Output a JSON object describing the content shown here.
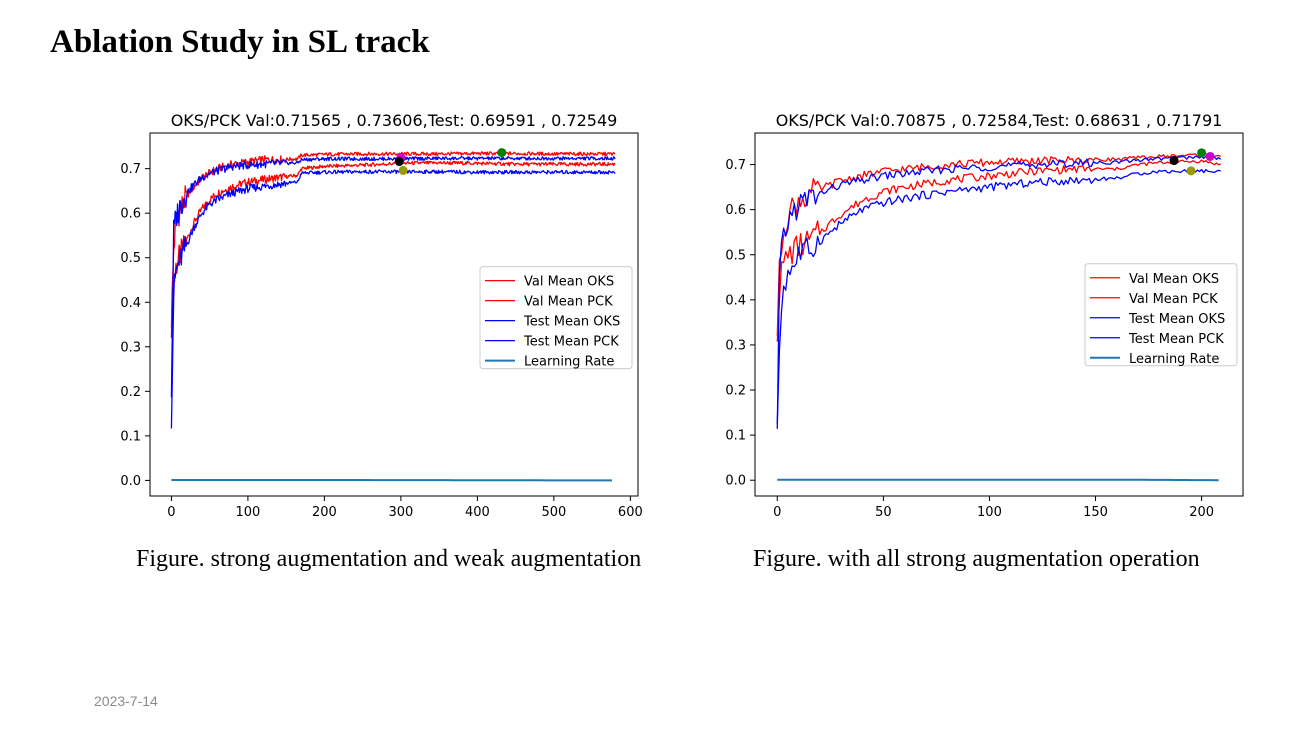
{
  "slide": {
    "title": "Ablation Study in SL track",
    "date": "2023-7-14"
  },
  "captions": {
    "left": "Figure. strong augmentation and weak augmentation",
    "right": "Figure. with all strong augmentation operation"
  },
  "chart_data": [
    {
      "type": "line",
      "title": "OKS/PCK Val:0.71565 , 0.73606,Test: 0.69591 , 0.72549",
      "xlim": [
        -28,
        610
      ],
      "ylim": [
        -0.035,
        0.78
      ],
      "xticks": [
        0,
        100,
        200,
        300,
        400,
        500,
        600
      ],
      "yticks": [
        0.0,
        0.1,
        0.2,
        0.3,
        0.4,
        0.5,
        0.6,
        0.7
      ],
      "grid": false,
      "legend_position": "center-right",
      "series": [
        {
          "name": "Val Mean OKS",
          "color": "#ff0000",
          "x": [
            0,
            3,
            6,
            10,
            15,
            20,
            30,
            40,
            50,
            60,
            80,
            100,
            120,
            140,
            165,
            170,
            200,
            250,
            300,
            350,
            400,
            450,
            500,
            580
          ],
          "y": [
            0.35,
            0.44,
            0.48,
            0.5,
            0.52,
            0.54,
            0.58,
            0.61,
            0.63,
            0.645,
            0.66,
            0.67,
            0.675,
            0.68,
            0.685,
            0.7,
            0.705,
            0.708,
            0.712,
            0.713,
            0.712,
            0.71,
            0.71,
            0.71
          ]
        },
        {
          "name": "Val Mean PCK",
          "color": "#ff0000",
          "x": [
            0,
            3,
            6,
            10,
            15,
            20,
            30,
            40,
            50,
            60,
            80,
            100,
            120,
            140,
            165,
            170,
            200,
            250,
            300,
            350,
            400,
            450,
            500,
            580
          ],
          "y": [
            0.36,
            0.52,
            0.58,
            0.6,
            0.62,
            0.64,
            0.66,
            0.68,
            0.69,
            0.7,
            0.71,
            0.715,
            0.72,
            0.72,
            0.722,
            0.73,
            0.732,
            0.733,
            0.733,
            0.733,
            0.734,
            0.734,
            0.733,
            0.733
          ]
        },
        {
          "name": "Test Mean OKS",
          "color": "#0000ff",
          "x": [
            0,
            3,
            6,
            10,
            15,
            20,
            30,
            40,
            50,
            60,
            80,
            100,
            120,
            140,
            165,
            170,
            200,
            250,
            300,
            350,
            400,
            450,
            500,
            580
          ],
          "y": [
            0.145,
            0.42,
            0.47,
            0.49,
            0.51,
            0.53,
            0.57,
            0.6,
            0.62,
            0.63,
            0.645,
            0.655,
            0.66,
            0.665,
            0.67,
            0.69,
            0.692,
            0.693,
            0.693,
            0.693,
            0.692,
            0.692,
            0.692,
            0.692
          ]
        },
        {
          "name": "Test Mean PCK",
          "color": "#0000ff",
          "x": [
            0,
            3,
            6,
            10,
            15,
            20,
            30,
            40,
            50,
            60,
            80,
            100,
            120,
            140,
            165,
            170,
            200,
            250,
            300,
            350,
            400,
            450,
            500,
            580
          ],
          "y": [
            0.2,
            0.56,
            0.59,
            0.61,
            0.63,
            0.645,
            0.665,
            0.68,
            0.69,
            0.695,
            0.705,
            0.708,
            0.71,
            0.712,
            0.713,
            0.72,
            0.722,
            0.722,
            0.722,
            0.723,
            0.723,
            0.723,
            0.723,
            0.723
          ]
        },
        {
          "name": "Learning Rate",
          "color": "#1f77b4",
          "x": [
            0,
            170,
            580
          ],
          "y": [
            0.001,
            0.001,
            0.0
          ]
        }
      ],
      "markers": [
        {
          "x": 432,
          "y": 0.736,
          "color": "#008000"
        },
        {
          "x": 300,
          "y": 0.725,
          "color": "#cc00cc"
        },
        {
          "x": 298,
          "y": 0.716,
          "color": "#000000"
        },
        {
          "x": 303,
          "y": 0.696,
          "color": "#999900"
        }
      ]
    },
    {
      "type": "line",
      "title": "OKS/PCK Val:0.70875 , 0.72584,Test: 0.68631 , 0.71791",
      "xlim": [
        -10.5,
        219.5
      ],
      "ylim": [
        -0.035,
        0.77
      ],
      "xticks": [
        0,
        50,
        100,
        150,
        200
      ],
      "yticks": [
        0.0,
        0.1,
        0.2,
        0.3,
        0.4,
        0.5,
        0.6,
        0.7
      ],
      "grid": false,
      "legend_position": "center-right",
      "series": [
        {
          "name": "Val Mean OKS",
          "color": "#ff0000",
          "x": [
            0,
            1,
            2,
            3,
            5,
            8,
            10,
            15,
            20,
            25,
            30,
            40,
            50,
            60,
            80,
            100,
            120,
            140,
            160,
            170,
            180,
            190,
            200,
            209
          ],
          "y": [
            0.33,
            0.42,
            0.46,
            0.48,
            0.5,
            0.51,
            0.52,
            0.53,
            0.55,
            0.57,
            0.59,
            0.62,
            0.64,
            0.65,
            0.665,
            0.675,
            0.685,
            0.69,
            0.69,
            0.7,
            0.704,
            0.706,
            0.708,
            0.7
          ]
        },
        {
          "name": "Val Mean PCK",
          "color": "#ff0000",
          "x": [
            0,
            1,
            2,
            3,
            5,
            8,
            10,
            15,
            20,
            25,
            30,
            40,
            50,
            60,
            80,
            100,
            120,
            140,
            160,
            170,
            180,
            190,
            200,
            209
          ],
          "y": [
            0.33,
            0.46,
            0.52,
            0.56,
            0.59,
            0.61,
            0.62,
            0.635,
            0.645,
            0.655,
            0.665,
            0.675,
            0.685,
            0.69,
            0.7,
            0.705,
            0.708,
            0.71,
            0.712,
            0.715,
            0.718,
            0.72,
            0.722,
            0.72
          ]
        },
        {
          "name": "Test Mean OKS",
          "color": "#0000ff",
          "x": [
            0,
            1,
            2,
            3,
            5,
            8,
            10,
            15,
            20,
            25,
            30,
            40,
            50,
            60,
            80,
            100,
            120,
            140,
            160,
            170,
            180,
            190,
            200,
            209
          ],
          "y": [
            0.1,
            0.3,
            0.38,
            0.43,
            0.46,
            0.48,
            0.5,
            0.51,
            0.53,
            0.55,
            0.57,
            0.6,
            0.615,
            0.625,
            0.64,
            0.65,
            0.66,
            0.665,
            0.67,
            0.68,
            0.685,
            0.685,
            0.686,
            0.684
          ]
        },
        {
          "name": "Test Mean PCK",
          "color": "#0000ff",
          "x": [
            0,
            1,
            2,
            3,
            5,
            8,
            10,
            15,
            20,
            25,
            30,
            40,
            50,
            60,
            80,
            100,
            120,
            140,
            160,
            170,
            180,
            190,
            200,
            209
          ],
          "y": [
            0.1,
            0.44,
            0.5,
            0.54,
            0.57,
            0.6,
            0.61,
            0.625,
            0.635,
            0.645,
            0.655,
            0.665,
            0.675,
            0.68,
            0.69,
            0.695,
            0.7,
            0.703,
            0.705,
            0.71,
            0.713,
            0.715,
            0.717,
            0.715
          ]
        },
        {
          "name": "Learning Rate",
          "color": "#1f77b4",
          "x": [
            0,
            170,
            209
          ],
          "y": [
            0.001,
            0.001,
            0.0
          ]
        }
      ],
      "markers": [
        {
          "x": 200,
          "y": 0.726,
          "color": "#008000"
        },
        {
          "x": 204,
          "y": 0.718,
          "color": "#cc00cc"
        },
        {
          "x": 187,
          "y": 0.709,
          "color": "#000000"
        },
        {
          "x": 195,
          "y": 0.686,
          "color": "#999900"
        }
      ]
    }
  ]
}
